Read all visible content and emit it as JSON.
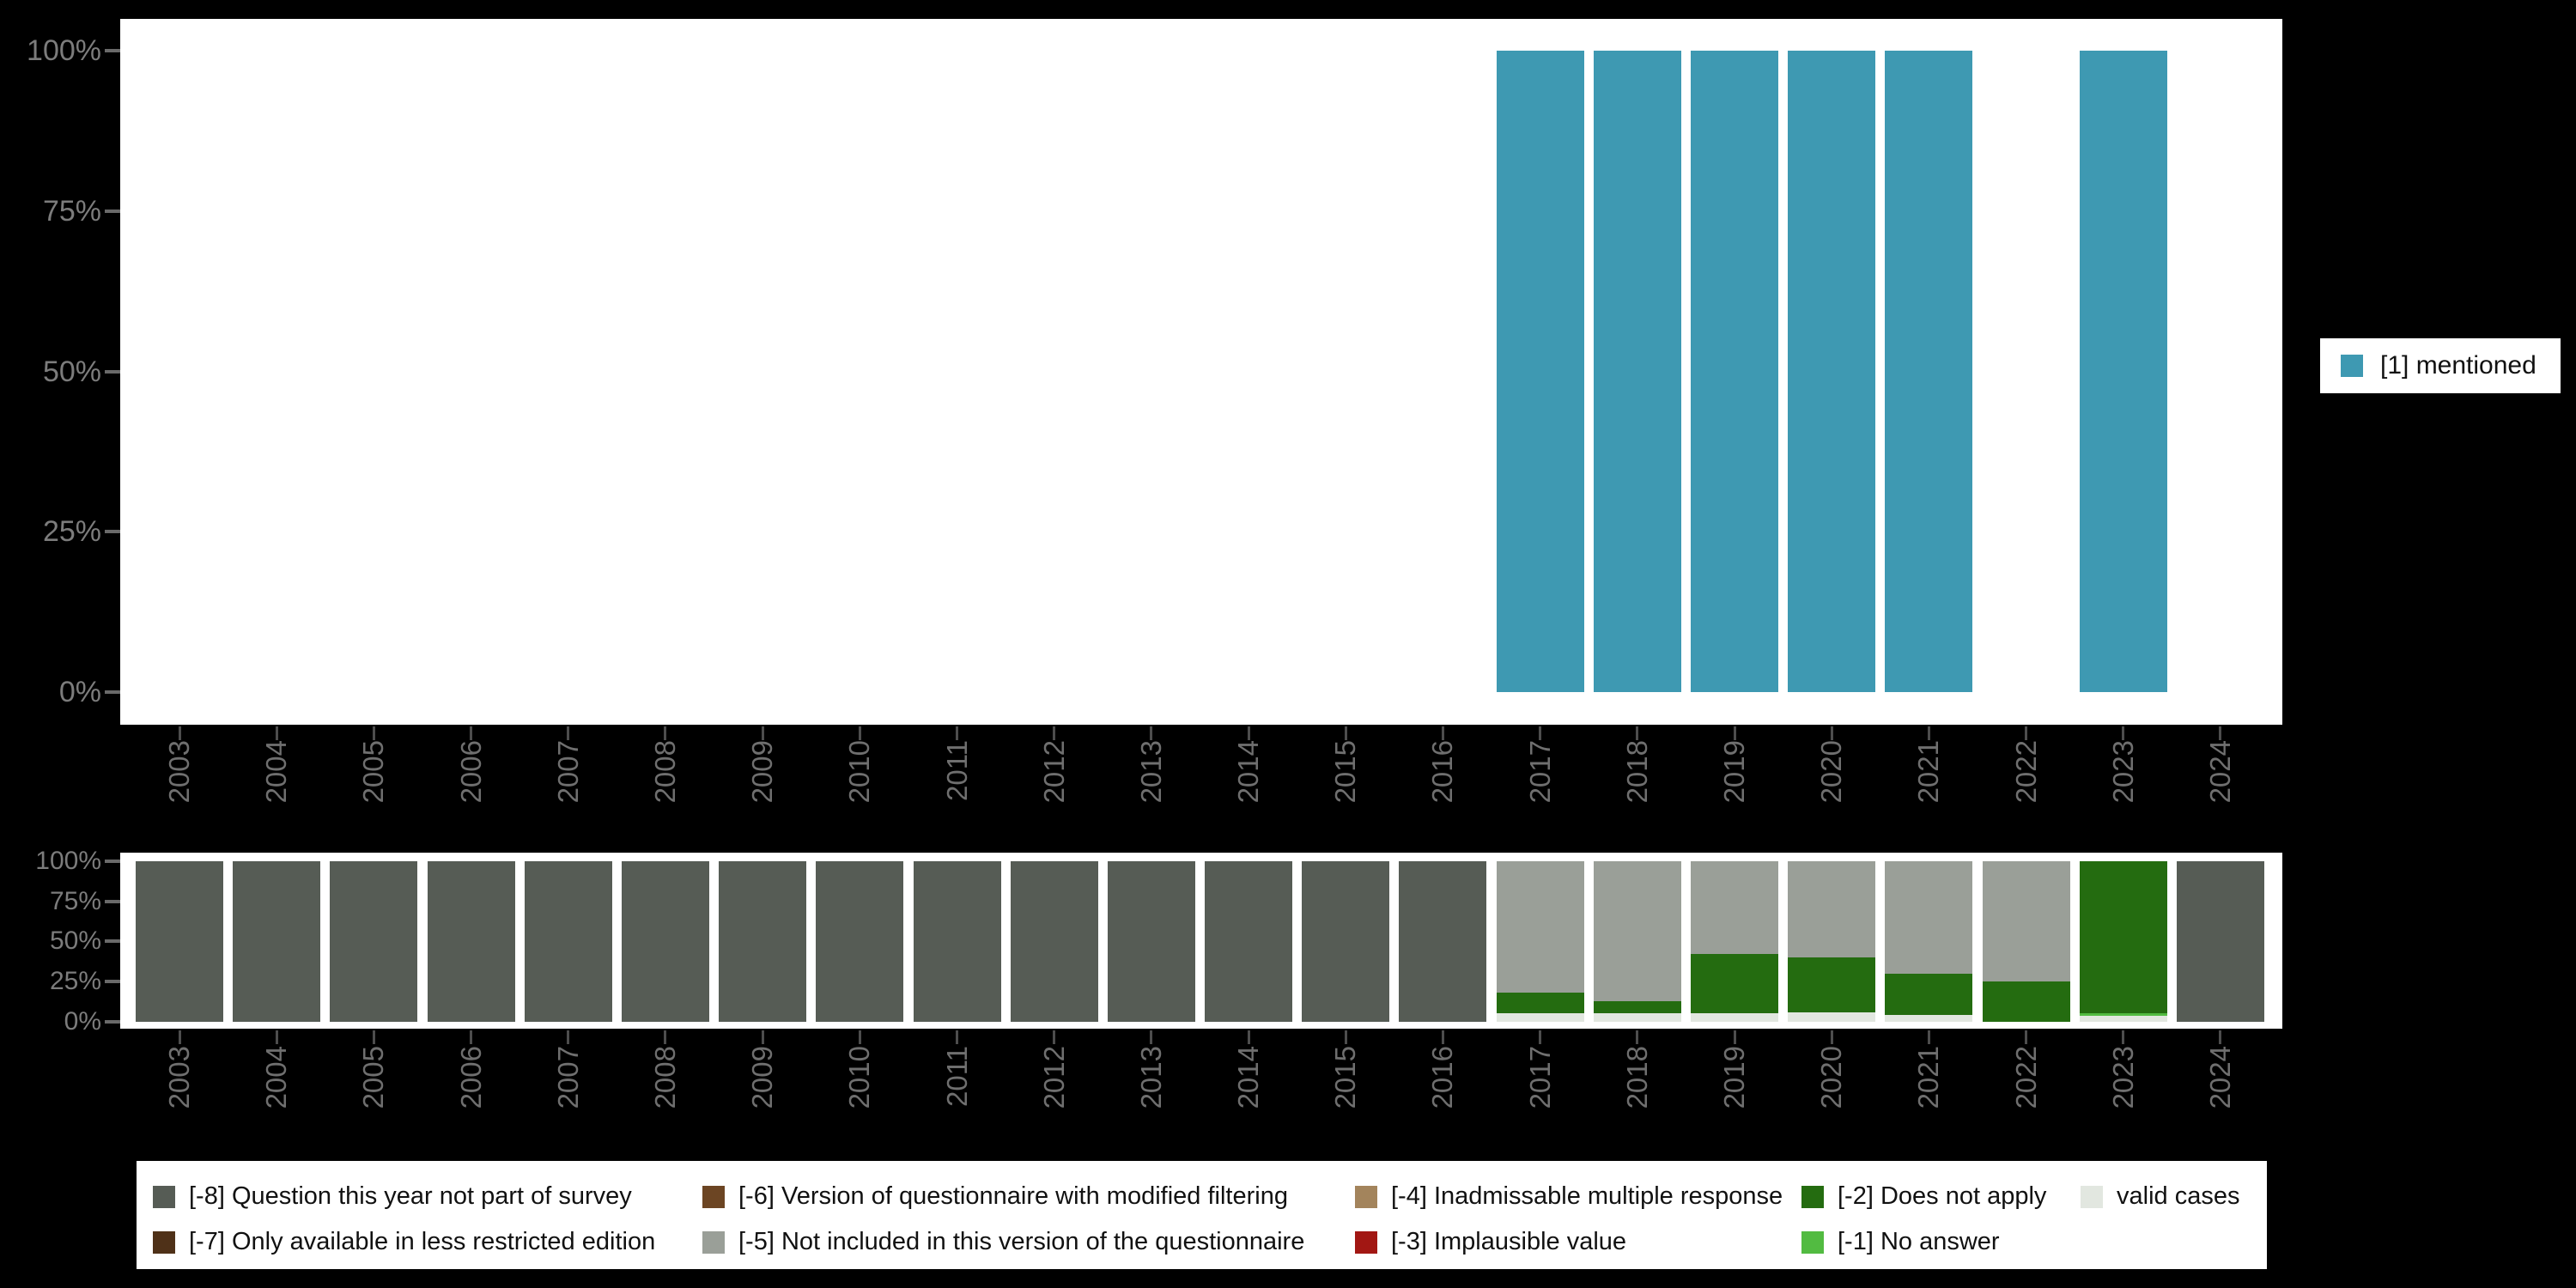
{
  "figure": {
    "background": "#000000",
    "plot_background": "#ffffff",
    "axis_text_color": "#7c7c7c"
  },
  "colors": {
    "mentioned": "#3E99B2",
    "m8": "#565C55",
    "m7": "#4F3118",
    "m6": "#6C4523",
    "m5": "#9A9F98",
    "m4": "#A3845C",
    "m3": "#A21713",
    "m2": "#246C10",
    "m1": "#52BB41",
    "valid": "#E2E7E0"
  },
  "right_legend": {
    "swatch_key": "mentioned",
    "label": "[1] mentioned"
  },
  "bottom_legend": {
    "columns": [
      [
        {
          "key": "m8",
          "label": "[-8] Question this year not part of survey"
        },
        {
          "key": "m7",
          "label": "[-7] Only available in less restricted edition"
        }
      ],
      [
        {
          "key": "m6",
          "label": "[-6] Version of questionnaire with modified filtering"
        },
        {
          "key": "m5",
          "label": "[-5] Not included in this version of the questionnaire"
        }
      ],
      [
        {
          "key": "m4",
          "label": "[-4] Inadmissable multiple response"
        },
        {
          "key": "m3",
          "label": "[-3] Implausible value"
        }
      ],
      [
        {
          "key": "m2",
          "label": "[-2] Does not apply"
        },
        {
          "key": "m1",
          "label": "[-1] No answer"
        }
      ],
      [
        {
          "key": "valid",
          "label": "valid cases"
        }
      ]
    ]
  },
  "chart_data": [
    {
      "type": "bar",
      "title": "",
      "categories": [
        "2003",
        "2004",
        "2005",
        "2006",
        "2007",
        "2008",
        "2009",
        "2010",
        "2011",
        "2012",
        "2013",
        "2014",
        "2015",
        "2016",
        "2017",
        "2018",
        "2019",
        "2020",
        "2021",
        "2022",
        "2023",
        "2024"
      ],
      "series": [
        {
          "name": "[1] mentioned",
          "color_key": "mentioned",
          "values": [
            0,
            0,
            0,
            0,
            0,
            0,
            0,
            0,
            0,
            0,
            0,
            0,
            0,
            0,
            100,
            100,
            100,
            100,
            100,
            0,
            100,
            0
          ]
        }
      ],
      "ylabel": "",
      "yticks": [
        "100%",
        "75%",
        "50%",
        "25%",
        "0%"
      ],
      "ylim": [
        0,
        100
      ],
      "grid": false,
      "legend_position": "right"
    },
    {
      "type": "stacked-bar",
      "title": "",
      "categories": [
        "2003",
        "2004",
        "2005",
        "2006",
        "2007",
        "2008",
        "2009",
        "2010",
        "2011",
        "2012",
        "2013",
        "2014",
        "2015",
        "2016",
        "2017",
        "2018",
        "2019",
        "2020",
        "2021",
        "2022",
        "2023",
        "2024"
      ],
      "series": [
        {
          "name": "[-8] Question this year not part of survey",
          "color_key": "m8",
          "values": [
            100,
            100,
            100,
            100,
            100,
            100,
            100,
            100,
            100,
            100,
            100,
            100,
            100,
            100,
            0,
            0,
            0,
            0,
            0,
            0,
            0,
            100
          ]
        },
        {
          "name": "[-5] Not included in this version of the questionnaire",
          "color_key": "m5",
          "values": [
            0,
            0,
            0,
            0,
            0,
            0,
            0,
            0,
            0,
            0,
            0,
            0,
            0,
            0,
            82,
            87,
            58,
            60,
            70,
            75,
            0,
            0
          ]
        },
        {
          "name": "[-2] Does not apply",
          "color_key": "m2",
          "values": [
            0,
            0,
            0,
            0,
            0,
            0,
            0,
            0,
            0,
            0,
            0,
            0,
            0,
            0,
            13,
            8,
            37,
            34,
            26,
            25,
            95,
            0
          ]
        },
        {
          "name": "[-1] No answer",
          "color_key": "m1",
          "values": [
            0,
            0,
            0,
            0,
            0,
            0,
            0,
            0,
            0,
            0,
            0,
            0,
            0,
            0,
            0,
            0,
            0,
            0,
            0,
            0,
            1.5,
            0
          ]
        },
        {
          "name": "valid cases",
          "color_key": "valid",
          "values": [
            0,
            0,
            0,
            0,
            0,
            0,
            0,
            0,
            0,
            0,
            0,
            0,
            0,
            0,
            5,
            5,
            5,
            6,
            4,
            0,
            3.5,
            0
          ]
        }
      ],
      "ylabel": "",
      "yticks": [
        "100%",
        "75%",
        "50%",
        "25%",
        "0%"
      ],
      "ylim": [
        0,
        100
      ],
      "grid": false,
      "legend_position": "bottom"
    }
  ]
}
